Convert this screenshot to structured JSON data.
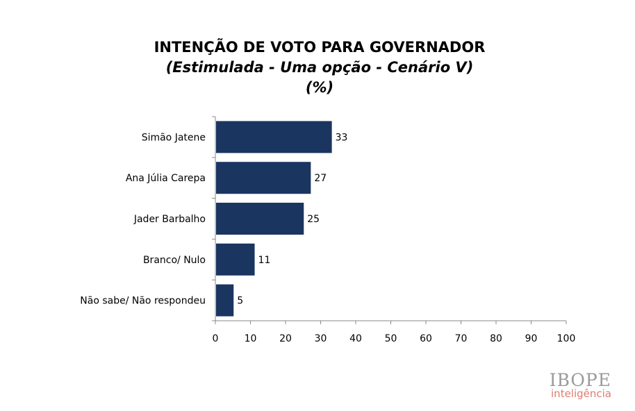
{
  "header": {
    "title": "INTENÇÃO DE VOTO PARA GOVERNADOR",
    "subtitle": "(Estimulada - Uma opção - Cenário V)",
    "unit": "(%)"
  },
  "chart_data": {
    "type": "bar",
    "orientation": "horizontal",
    "categories": [
      "Simão Jatene",
      "Ana Júlia Carepa",
      "Jader Barbalho",
      "Branco/ Nulo",
      "Não sabe/ Não respondeu"
    ],
    "values": [
      33,
      27,
      25,
      11,
      5
    ],
    "xlim": [
      0,
      100
    ],
    "xticks": [
      0,
      10,
      20,
      30,
      40,
      50,
      60,
      70,
      80,
      90,
      100
    ],
    "grid": false,
    "bar_color": "#1b3561",
    "data_labels": true
  },
  "logo": {
    "main": "IBOPE",
    "sub": "inteligência",
    "main_color": "#9a9a9a",
    "sub_color": "#e07b70"
  }
}
